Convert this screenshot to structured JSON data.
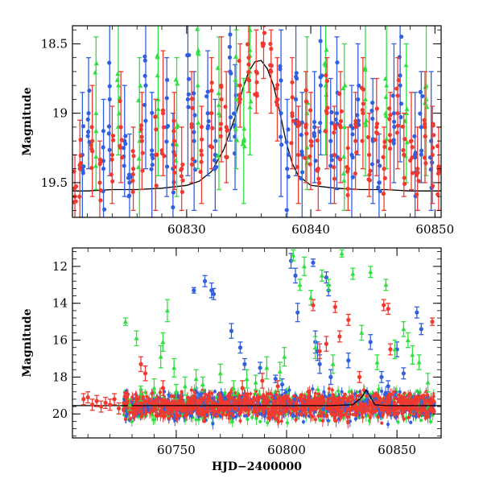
{
  "chart_data": [
    {
      "type": "scatter",
      "panel": "top",
      "xlim": [
        60820.8,
        60850.5
      ],
      "ylim": [
        19.75,
        18.37
      ],
      "y_inverted": true,
      "grid": false,
      "xticks": [
        60830,
        60840,
        60850
      ],
      "xtick_labels": [
        "60830",
        "60840",
        "60850"
      ],
      "yticks": [
        18.5,
        19,
        19.5
      ],
      "ytick_labels": [
        "18.5",
        "19",
        "19.5"
      ],
      "xlabel": "",
      "ylabel": "Magnitude",
      "series": [
        {
          "color": "#3060e0",
          "marker": "circle",
          "errorbars": true,
          "x": [
            60821.6,
            60822.1,
            60823.3,
            60823.8,
            60825.0,
            60825.4,
            60826.7,
            60827.2,
            60828.4,
            60828.9,
            60830.1,
            60830.6,
            60831.7,
            60832.3,
            60833.5,
            60833.9,
            60837.6,
            60838.1,
            60838.8,
            60839.3,
            60840.3,
            60840.8,
            60841.6,
            60842.1,
            60843.3,
            60843.8,
            60845.0,
            60845.5,
            60846.7,
            60847.2,
            60848.4,
            60848.9,
            60849.7
          ],
          "y": [
            19.3,
            19.0,
            19.4,
            18.9,
            19.2,
            19.5,
            18.8,
            19.3,
            19.1,
            19.4,
            18.9,
            19.2,
            19.0,
            19.3,
            18.7,
            19.1,
            19.0,
            19.4,
            18.9,
            19.3,
            19.1,
            18.8,
            19.2,
            19.0,
            19.3,
            18.9,
            19.2,
            19.5,
            19.0,
            18.8,
            19.3,
            19.1,
            19.2
          ],
          "yerr": [
            0.45,
            0.4,
            0.5,
            0.55,
            0.4,
            0.35,
            0.6,
            0.45,
            0.5,
            0.4,
            0.55,
            0.5,
            0.45,
            0.4,
            0.5,
            0.45,
            0.6,
            0.5,
            0.55,
            0.45,
            0.4,
            0.5,
            0.45,
            0.55,
            0.5,
            0.4,
            0.45,
            0.35,
            0.5,
            0.55,
            0.45,
            0.4,
            0.5
          ]
        },
        {
          "color": "#30e040",
          "marker": "triangle",
          "errorbars": true,
          "x": [
            60822.7,
            60824.5,
            60826.2,
            60827.7,
            60829.2,
            60830.9,
            60832.6,
            60834.0,
            60834.6,
            60835.1,
            60839.7,
            60841.2,
            60842.7,
            60844.4,
            60846.1,
            60847.7,
            60849.3
          ],
          "y": [
            19.0,
            18.8,
            19.2,
            18.9,
            19.1,
            18.8,
            19.0,
            18.9,
            19.2,
            18.7,
            19.0,
            18.8,
            19.1,
            18.9,
            18.8,
            19.0,
            18.9
          ],
          "yerr": [
            0.55,
            0.5,
            0.6,
            0.55,
            0.5,
            0.6,
            0.55,
            0.5,
            0.45,
            0.6,
            0.55,
            0.5,
            0.6,
            0.55,
            0.6,
            0.5,
            0.55
          ]
        },
        {
          "color": "#f03a30",
          "marker": "circle",
          "errorbars": true,
          "x": [
            60821.0,
            60821.4,
            60822.4,
            60823.0,
            60824.0,
            60824.7,
            60825.7,
            60826.4,
            60827.5,
            60828.1,
            60829.0,
            60829.6,
            60830.4,
            60831.2,
            60832.0,
            60832.8,
            60833.2,
            60834.3,
            60835.0,
            60835.6,
            60836.2,
            60836.8,
            60837.3,
            60838.5,
            60839.0,
            60839.6,
            60840.0,
            60840.6,
            60841.3,
            60841.9,
            60842.4,
            60843.0,
            60843.6,
            60844.2,
            60844.7,
            60845.3,
            60845.9,
            60846.4,
            60847.0,
            60847.5,
            60848.1,
            60848.6,
            60849.2,
            60849.8,
            60850.3
          ],
          "y": [
            19.6,
            19.4,
            19.2,
            19.5,
            19.3,
            19.1,
            19.4,
            19.2,
            19.3,
            19.0,
            19.2,
            19.4,
            19.1,
            19.3,
            19.0,
            18.9,
            19.1,
            18.8,
            18.6,
            18.7,
            18.5,
            18.7,
            18.9,
            19.0,
            19.3,
            19.1,
            19.2,
            19.4,
            19.0,
            19.3,
            19.1,
            19.4,
            19.2,
            19.0,
            19.3,
            19.1,
            19.4,
            19.2,
            19.0,
            19.3,
            19.2,
            19.4,
            19.1,
            19.3,
            19.4
          ],
          "yerr": [
            0.3,
            0.35,
            0.4,
            0.3,
            0.35,
            0.4,
            0.3,
            0.35,
            0.4,
            0.45,
            0.35,
            0.3,
            0.4,
            0.35,
            0.4,
            0.45,
            0.4,
            0.3,
            0.25,
            0.3,
            0.25,
            0.3,
            0.3,
            0.4,
            0.35,
            0.4,
            0.35,
            0.3,
            0.4,
            0.35,
            0.4,
            0.3,
            0.35,
            0.4,
            0.3,
            0.35,
            0.3,
            0.35,
            0.4,
            0.3,
            0.35,
            0.3,
            0.4,
            0.35,
            0.3
          ]
        }
      ],
      "model_curve": {
        "color": "#000000",
        "x": [
          60820.8,
          60822,
          60824,
          60826,
          60828,
          60830,
          60831,
          60832,
          60833,
          60834,
          60834.5,
          60835,
          60835.5,
          60836,
          60836.5,
          60837,
          60837.5,
          60838,
          60838.5,
          60839,
          60840,
          60842,
          60844,
          60846,
          60848,
          60850,
          60850.5
        ],
        "y": [
          19.56,
          19.56,
          19.55,
          19.55,
          19.54,
          19.52,
          19.49,
          19.42,
          19.26,
          19.0,
          18.83,
          18.7,
          18.63,
          18.62,
          18.68,
          18.8,
          18.99,
          19.2,
          19.36,
          19.45,
          19.52,
          19.54,
          19.55,
          19.55,
          19.56,
          19.56,
          19.56
        ]
      }
    },
    {
      "type": "scatter",
      "panel": "bottom",
      "xlim": [
        60703,
        60870
      ],
      "ylim": [
        21.3,
        11.0
      ],
      "y_inverted": true,
      "grid": false,
      "xticks": [
        60750,
        60800,
        60850
      ],
      "xtick_labels": [
        "60750",
        "60800",
        "60850"
      ],
      "yticks": [
        12,
        14,
        16,
        18,
        20
      ],
      "ytick_labels": [
        "12",
        "14",
        "16",
        "18",
        "20"
      ],
      "xlabel": "HJD−2400000",
      "ylabel": "Magnitude",
      "series": [
        {
          "color": "#3060e0",
          "marker": "circle",
          "errorbars": true,
          "x": [
            60758,
            60763,
            60766,
            60767,
            60775,
            60779,
            60781,
            60788,
            60795,
            60798,
            60802,
            60804,
            60805,
            60812,
            60813,
            60814,
            60815,
            60818,
            60819,
            60820,
            60828,
            60838,
            60843,
            60846,
            60850,
            60853,
            60859,
            60861
          ],
          "y": [
            13.3,
            12.8,
            13.3,
            13.5,
            15.5,
            16.4,
            17.3,
            17.5,
            18.1,
            18.4,
            11.7,
            12.5,
            14.5,
            11.8,
            16.1,
            16.6,
            17.3,
            12.6,
            13.3,
            18.0,
            17.1,
            16.1,
            18.0,
            18.5,
            16.5,
            17.8,
            14.5,
            15.4
          ],
          "yerr": [
            0.15,
            0.3,
            0.4,
            0.3,
            0.4,
            0.3,
            0.3,
            0.3,
            0.2,
            0.3,
            0.4,
            0.4,
            0.5,
            0.2,
            0.6,
            0.5,
            0.5,
            0.3,
            0.3,
            0.4,
            0.4,
            0.4,
            0.3,
            0.3,
            0.4,
            0.3,
            0.3,
            0.3
          ]
        },
        {
          "color": "#30e040",
          "marker": "triangle",
          "errorbars": true,
          "x": [
            60727,
            60729,
            60732,
            60734,
            60740,
            60743,
            60744,
            60746,
            60749,
            60750,
            60754,
            60759,
            60762,
            60770,
            60776,
            60782,
            60786,
            60791,
            60797,
            60799,
            60803,
            60806,
            60808,
            60811,
            60813,
            60816,
            60819,
            60821,
            60825,
            60830,
            60834,
            60838,
            60841,
            60845,
            60849,
            60853,
            60855,
            60857,
            60860,
            60864
          ],
          "y": [
            15.0,
            19.5,
            15.9,
            18.9,
            18.6,
            16.9,
            16.1,
            14.4,
            17.5,
            18.8,
            18.5,
            18.1,
            18.4,
            17.8,
            18.6,
            18.1,
            18.3,
            17.5,
            17.7,
            16.9,
            11.4,
            13.0,
            12.0,
            13.7,
            16.4,
            12.5,
            13.0,
            17.3,
            11.3,
            12.4,
            15.6,
            12.3,
            17.2,
            13.0,
            16.5,
            15.4,
            16.0,
            16.8,
            17.2,
            18.3
          ],
          "yerr": [
            0.2,
            0.3,
            0.4,
            0.4,
            0.5,
            0.6,
            0.5,
            0.6,
            0.5,
            0.4,
            0.5,
            0.5,
            0.4,
            0.5,
            0.4,
            0.5,
            0.4,
            0.6,
            0.5,
            0.5,
            0.3,
            0.3,
            0.5,
            0.4,
            0.6,
            0.3,
            0.3,
            0.5,
            0.2,
            0.3,
            0.4,
            0.3,
            0.4,
            0.3,
            0.5,
            0.4,
            0.4,
            0.5,
            0.4,
            0.5
          ]
        },
        {
          "color": "#f03a30",
          "marker": "circle",
          "errorbars": true,
          "x": [
            60708,
            60710,
            60712,
            60714,
            60716,
            60718,
            60720,
            60722,
            60724,
            60734,
            60736,
            60744,
            60780,
            60789,
            60796,
            60812,
            60815,
            60818,
            60822,
            60824,
            60828,
            60833,
            60844,
            60846,
            60847,
            60866
          ],
          "y": [
            19.2,
            19.1,
            19.5,
            19.3,
            19.6,
            19.4,
            19.5,
            19.2,
            19.7,
            17.3,
            17.8,
            18.6,
            18.6,
            18.2,
            18.5,
            14.1,
            16.6,
            16.2,
            14.2,
            15.8,
            14.9,
            18.0,
            14.1,
            14.3,
            16.5,
            15.0
          ],
          "yerr": [
            0.3,
            0.3,
            0.3,
            0.3,
            0.3,
            0.3,
            0.3,
            0.3,
            0.3,
            0.4,
            0.4,
            0.4,
            0.4,
            0.4,
            0.3,
            0.3,
            0.4,
            0.4,
            0.3,
            0.3,
            0.3,
            0.3,
            0.3,
            0.3,
            0.3,
            0.2
          ]
        }
      ],
      "baseline_band": {
        "x_from": 60726,
        "x_to": 60867,
        "center": 19.55,
        "spread": 0.55
      },
      "model_curve": {
        "color": "#000000",
        "x": [
          60703,
          60720,
          60740,
          60760,
          60780,
          60800,
          60820,
          60830,
          60834,
          60836,
          60838,
          60840,
          60845,
          60870
        ],
        "y": [
          19.55,
          19.55,
          19.55,
          19.55,
          19.55,
          19.55,
          19.55,
          19.5,
          19.1,
          18.7,
          19.1,
          19.5,
          19.55,
          19.55
        ]
      }
    }
  ]
}
